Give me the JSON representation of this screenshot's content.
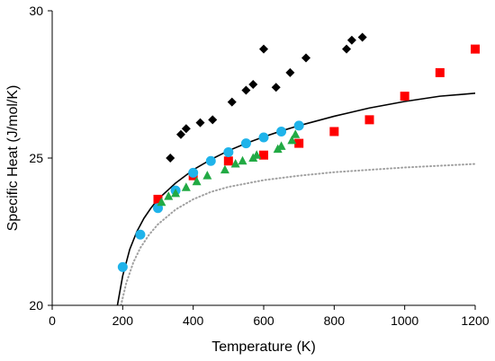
{
  "chart_data": {
    "type": "scatter",
    "xlabel": "Temperature (K)",
    "ylabel": "Specific Heat  (J/mol/K)",
    "xlim": [
      0,
      1200
    ],
    "ylim": [
      20,
      30
    ],
    "x_ticks": [
      0,
      200,
      400,
      600,
      800,
      1000,
      1200
    ],
    "y_ticks": [
      20,
      25,
      30
    ],
    "x_tick_labels": [
      "0",
      "200",
      "400",
      "600",
      "800",
      "1000",
      "1200"
    ],
    "y_tick_labels": [
      "20",
      "25",
      "30"
    ],
    "grid": false,
    "legend": "none",
    "series": [
      {
        "marker": "diamond",
        "color": "#000000",
        "x": [
          335,
          365,
          380,
          420,
          455,
          510,
          550,
          570,
          600,
          635,
          675,
          720,
          835,
          850,
          880
        ],
        "y": [
          25.0,
          25.8,
          26.0,
          26.2,
          26.3,
          26.9,
          27.3,
          27.5,
          28.7,
          27.4,
          27.9,
          28.4,
          28.7,
          29.0,
          29.1
        ]
      },
      {
        "marker": "square",
        "color": "#ff0000",
        "x": [
          300,
          400,
          500,
          600,
          700,
          800,
          900,
          1000,
          1100,
          1200
        ],
        "y": [
          23.6,
          24.4,
          24.9,
          25.1,
          25.5,
          25.9,
          26.3,
          27.1,
          27.9,
          28.7
        ]
      },
      {
        "marker": "circle",
        "color": "#1fb3ea",
        "x": [
          200,
          250,
          300,
          350,
          400,
          450,
          500,
          550,
          600,
          650,
          700
        ],
        "y": [
          21.3,
          22.4,
          23.3,
          23.9,
          24.5,
          24.9,
          25.2,
          25.5,
          25.7,
          25.9,
          26.1
        ]
      },
      {
        "marker": "triangle",
        "color": "#22aa44",
        "x": [
          310,
          330,
          350,
          380,
          410,
          440,
          490,
          520,
          540,
          570,
          580,
          640,
          650,
          680,
          690
        ],
        "y": [
          23.5,
          23.7,
          23.8,
          24.0,
          24.2,
          24.4,
          24.6,
          24.8,
          24.9,
          25.0,
          25.1,
          25.3,
          25.4,
          25.6,
          25.8
        ]
      }
    ],
    "curves": [
      {
        "style": "solid",
        "color": "#000000",
        "x": [
          185,
          200,
          220,
          240,
          260,
          280,
          300,
          350,
          400,
          450,
          500,
          550,
          600,
          650,
          700,
          800,
          900,
          1000,
          1100,
          1200
        ],
        "y": [
          20.0,
          21.0,
          21.9,
          22.5,
          22.95,
          23.3,
          23.6,
          24.15,
          24.6,
          24.95,
          25.25,
          25.5,
          25.72,
          25.92,
          26.1,
          26.42,
          26.7,
          26.92,
          27.1,
          27.2
        ]
      },
      {
        "style": "dotted",
        "color": "#a0a0a0",
        "x": [
          195,
          210,
          230,
          250,
          275,
          300,
          350,
          400,
          450,
          500,
          600,
          700,
          800,
          900,
          1000,
          1100,
          1200
        ],
        "y": [
          20.0,
          20.75,
          21.45,
          21.95,
          22.4,
          22.75,
          23.25,
          23.6,
          23.85,
          24.02,
          24.25,
          24.4,
          24.52,
          24.6,
          24.68,
          24.74,
          24.8
        ]
      }
    ]
  }
}
